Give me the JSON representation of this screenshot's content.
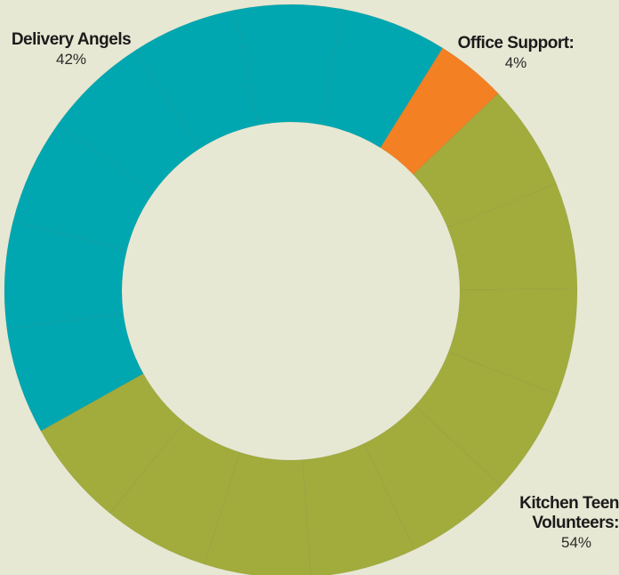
{
  "chart_data": {
    "type": "pie",
    "categories": [
      "Delivery Angels",
      "Office Support:",
      "Kitchen Teen Volunteers:"
    ],
    "values": [
      42,
      4,
      54
    ],
    "value_labels": [
      "42%",
      "4%",
      "54%"
    ],
    "colors": {
      "Delivery Angels": "#00a7b0",
      "Office Support:": "#f48024",
      "Kitchen Teen Volunteers:": "#a2ac3c",
      "background": "#e7e8d3"
    },
    "legend": "none"
  },
  "labels": {
    "delivery": {
      "name": "Delivery Angels",
      "pct": "42%"
    },
    "office": {
      "name": "Office Support:",
      "pct": "4%"
    },
    "kitchen": {
      "name": "Kitchen Teen Volunteers:",
      "pct": "54%"
    }
  }
}
